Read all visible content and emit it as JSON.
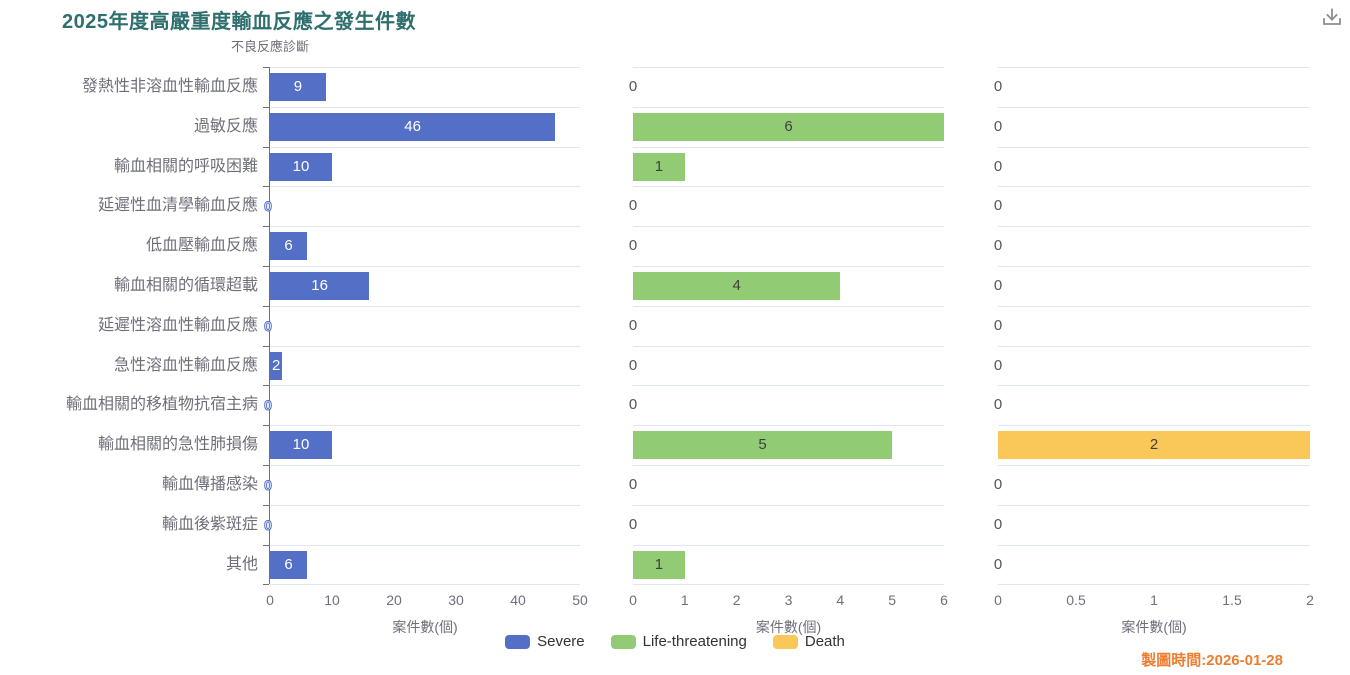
{
  "title": "2025年度高嚴重度輸血反應之發生件數",
  "category_axis_title": "不良反應診斷",
  "timestamp": {
    "text": "製圖時間:2026-01-28"
  },
  "toolbox": {
    "icon": "download-icon"
  },
  "colors": {
    "title": "#2f6f6d",
    "timestamp": "#ed7d31",
    "axis": "#6e7079",
    "split_line": "#e0e6f1",
    "severe": "#5470c6",
    "life_threatening": "#91cc75",
    "death": "#fac858"
  },
  "legend": [
    {
      "name": "Severe",
      "color": "#5470c6"
    },
    {
      "name": "Life-threatening",
      "color": "#91cc75"
    },
    {
      "name": "Death",
      "color": "#fac858"
    }
  ],
  "chart_data": {
    "type": "bar",
    "orientation": "horizontal",
    "title": "2025年度高嚴重度輸血反應之發生件數",
    "category_axis_label": "不良反應診斷",
    "value_axis_label": "案件數(個)",
    "legend_position": "bottom-center",
    "grid": "category-row-splitlines, no vertical gridlines",
    "categories": [
      "發熱性非溶血性輸血反應",
      "過敏反應",
      "輸血相關的呼吸困難",
      "延遲性血清學輸血反應",
      "低血壓輸血反應",
      "輸血相關的循環超載",
      "延遲性溶血性輸血反應",
      "急性溶血性輸血反應",
      "輸血相關的移植物抗宿主病",
      "輸血相關的急性肺損傷",
      "輸血傳播感染",
      "輸血後紫斑症",
      "其他"
    ],
    "series": [
      {
        "name": "Severe",
        "color": "#5470c6",
        "values": [
          9,
          46,
          10,
          0,
          6,
          16,
          0,
          2,
          0,
          10,
          0,
          0,
          6
        ],
        "xlim": [
          0,
          50
        ],
        "ticks": [
          0,
          10,
          20,
          30,
          40,
          50
        ]
      },
      {
        "name": "Life-threatening",
        "color": "#91cc75",
        "values": [
          0,
          6,
          1,
          0,
          0,
          4,
          0,
          0,
          0,
          5,
          0,
          0,
          1
        ],
        "xlim": [
          0,
          6
        ],
        "ticks": [
          0,
          1,
          2,
          3,
          4,
          5,
          6
        ]
      },
      {
        "name": "Death",
        "color": "#fac858",
        "values": [
          0,
          0,
          0,
          0,
          0,
          0,
          0,
          0,
          0,
          2,
          0,
          0,
          0
        ],
        "xlim": [
          0,
          2
        ],
        "ticks": [
          0,
          0.5,
          1,
          1.5,
          2
        ]
      }
    ]
  }
}
